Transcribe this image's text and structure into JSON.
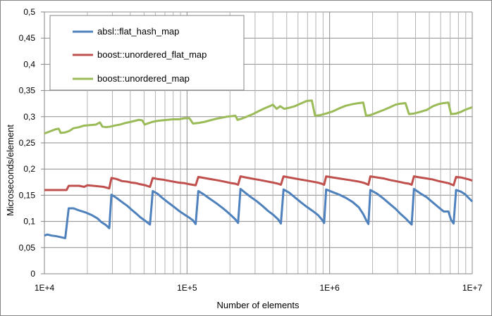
{
  "chart_data": {
    "type": "line",
    "title": "",
    "xlabel": "Number of elements",
    "ylabel": "Microseconds/element",
    "x_scale": "log",
    "xlim": [
      10000,
      10000000
    ],
    "ylim": [
      0,
      0.5
    ],
    "x_tick_labels": [
      "1E+4",
      "1E+5",
      "1E+6",
      "1E+7"
    ],
    "x_tick_values": [
      10000,
      100000,
      1000000,
      10000000
    ],
    "y_tick_labels": [
      "0",
      "0,05",
      "0,1",
      "0,15",
      "0,2",
      "0,25",
      "0,3",
      "0,35",
      "0,4",
      "0,45",
      "0,5"
    ],
    "y_tick_values": [
      0,
      0.05,
      0.1,
      0.15,
      0.2,
      0.25,
      0.3,
      0.35,
      0.4,
      0.45,
      0.5
    ],
    "grid": true,
    "legend_position": "top-left",
    "series": [
      {
        "name": "absl::flat_hash_map",
        "color": "#4F81BD",
        "points": [
          [
            10000,
            0.073
          ],
          [
            10500,
            0.075
          ],
          [
            11200,
            0.073
          ],
          [
            12000,
            0.072
          ],
          [
            13000,
            0.07
          ],
          [
            14000,
            0.068
          ],
          [
            14800,
            0.125
          ],
          [
            16000,
            0.125
          ],
          [
            17500,
            0.121
          ],
          [
            19500,
            0.117
          ],
          [
            21500,
            0.112
          ],
          [
            23500,
            0.106
          ],
          [
            25000,
            0.099
          ],
          [
            27000,
            0.093
          ],
          [
            28500,
            0.087
          ],
          [
            29500,
            0.151
          ],
          [
            32000,
            0.145
          ],
          [
            35000,
            0.137
          ],
          [
            38000,
            0.13
          ],
          [
            41000,
            0.122
          ],
          [
            44000,
            0.115
          ],
          [
            47000,
            0.108
          ],
          [
            51000,
            0.101
          ],
          [
            55000,
            0.094
          ],
          [
            57500,
            0.158
          ],
          [
            62000,
            0.153
          ],
          [
            67000,
            0.145
          ],
          [
            73000,
            0.137
          ],
          [
            80000,
            0.129
          ],
          [
            88000,
            0.12
          ],
          [
            96000,
            0.113
          ],
          [
            104000,
            0.107
          ],
          [
            110000,
            0.102
          ],
          [
            115000,
            0.095
          ],
          [
            120000,
            0.158
          ],
          [
            132000,
            0.151
          ],
          [
            145000,
            0.143
          ],
          [
            160000,
            0.135
          ],
          [
            175000,
            0.127
          ],
          [
            190000,
            0.119
          ],
          [
            205000,
            0.111
          ],
          [
            218000,
            0.104
          ],
          [
            228000,
            0.097
          ],
          [
            237000,
            0.162
          ],
          [
            258000,
            0.154
          ],
          [
            282000,
            0.146
          ],
          [
            310000,
            0.138
          ],
          [
            340000,
            0.129
          ],
          [
            370000,
            0.12
          ],
          [
            405000,
            0.112
          ],
          [
            435000,
            0.104
          ],
          [
            455000,
            0.096
          ],
          [
            475000,
            0.161
          ],
          [
            520000,
            0.155
          ],
          [
            570000,
            0.146
          ],
          [
            625000,
            0.137
          ],
          [
            690000,
            0.128
          ],
          [
            760000,
            0.12
          ],
          [
            830000,
            0.112
          ],
          [
            880000,
            0.104
          ],
          [
            915000,
            0.097
          ],
          [
            945000,
            0.161
          ],
          [
            1050000,
            0.156
          ],
          [
            1170000,
            0.151
          ],
          [
            1300000,
            0.145
          ],
          [
            1450000,
            0.137
          ],
          [
            1600000,
            0.127
          ],
          [
            1720000,
            0.114
          ],
          [
            1800000,
            0.103
          ],
          [
            1870000,
            0.095
          ],
          [
            1930000,
            0.16
          ],
          [
            2150000,
            0.153
          ],
          [
            2400000,
            0.143
          ],
          [
            2650000,
            0.133
          ],
          [
            2900000,
            0.124
          ],
          [
            3150000,
            0.114
          ],
          [
            3400000,
            0.106
          ],
          [
            3600000,
            0.099
          ],
          [
            3760000,
            0.094
          ],
          [
            3900000,
            0.162
          ],
          [
            4300000,
            0.154
          ],
          [
            4800000,
            0.146
          ],
          [
            5300000,
            0.136
          ],
          [
            5800000,
            0.127
          ],
          [
            6300000,
            0.119
          ],
          [
            6800000,
            0.119
          ],
          [
            7100000,
            0.103
          ],
          [
            7400000,
            0.096
          ],
          [
            7700000,
            0.16
          ],
          [
            8300000,
            0.157
          ],
          [
            8900000,
            0.152
          ],
          [
            9500000,
            0.144
          ],
          [
            10000000,
            0.138
          ]
        ]
      },
      {
        "name": "boost::unordered_flat_map",
        "color": "#C0504D",
        "points": [
          [
            10000,
            0.16
          ],
          [
            11500,
            0.16
          ],
          [
            13000,
            0.16
          ],
          [
            14300,
            0.16
          ],
          [
            14800,
            0.168
          ],
          [
            16000,
            0.168
          ],
          [
            17500,
            0.168
          ],
          [
            19000,
            0.166
          ],
          [
            20000,
            0.169
          ],
          [
            22000,
            0.168
          ],
          [
            24000,
            0.167
          ],
          [
            26000,
            0.166
          ],
          [
            28500,
            0.163
          ],
          [
            29500,
            0.183
          ],
          [
            32000,
            0.181
          ],
          [
            35000,
            0.177
          ],
          [
            38000,
            0.176
          ],
          [
            41000,
            0.174
          ],
          [
            44000,
            0.173
          ],
          [
            47000,
            0.171
          ],
          [
            51000,
            0.169
          ],
          [
            55000,
            0.166
          ],
          [
            57500,
            0.183
          ],
          [
            62000,
            0.181
          ],
          [
            67000,
            0.18
          ],
          [
            73000,
            0.178
          ],
          [
            80000,
            0.176
          ],
          [
            88000,
            0.174
          ],
          [
            96000,
            0.173
          ],
          [
            104000,
            0.171
          ],
          [
            115000,
            0.169
          ],
          [
            120000,
            0.185
          ],
          [
            132000,
            0.183
          ],
          [
            145000,
            0.181
          ],
          [
            160000,
            0.179
          ],
          [
            175000,
            0.177
          ],
          [
            190000,
            0.175
          ],
          [
            205000,
            0.173
          ],
          [
            218000,
            0.172
          ],
          [
            228000,
            0.17
          ],
          [
            237000,
            0.186
          ],
          [
            258000,
            0.184
          ],
          [
            282000,
            0.182
          ],
          [
            310000,
            0.18
          ],
          [
            340000,
            0.178
          ],
          [
            370000,
            0.176
          ],
          [
            405000,
            0.174
          ],
          [
            435000,
            0.172
          ],
          [
            455000,
            0.17
          ],
          [
            475000,
            0.186
          ],
          [
            520000,
            0.184
          ],
          [
            570000,
            0.182
          ],
          [
            625000,
            0.18
          ],
          [
            690000,
            0.178
          ],
          [
            760000,
            0.176
          ],
          [
            830000,
            0.174
          ],
          [
            880000,
            0.172
          ],
          [
            915000,
            0.17
          ],
          [
            945000,
            0.186
          ],
          [
            1050000,
            0.184
          ],
          [
            1170000,
            0.182
          ],
          [
            1300000,
            0.18
          ],
          [
            1450000,
            0.178
          ],
          [
            1600000,
            0.176
          ],
          [
            1720000,
            0.174
          ],
          [
            1800000,
            0.172
          ],
          [
            1870000,
            0.17
          ],
          [
            1930000,
            0.186
          ],
          [
            2150000,
            0.184
          ],
          [
            2400000,
            0.182
          ],
          [
            2650000,
            0.179
          ],
          [
            2900000,
            0.177
          ],
          [
            3150000,
            0.175
          ],
          [
            3400000,
            0.173
          ],
          [
            3600000,
            0.172
          ],
          [
            3760000,
            0.17
          ],
          [
            3900000,
            0.186
          ],
          [
            4300000,
            0.184
          ],
          [
            4800000,
            0.182
          ],
          [
            5300000,
            0.18
          ],
          [
            5800000,
            0.177
          ],
          [
            6300000,
            0.175
          ],
          [
            6800000,
            0.173
          ],
          [
            7100000,
            0.171
          ],
          [
            7400000,
            0.169
          ],
          [
            7700000,
            0.185
          ],
          [
            8300000,
            0.184
          ],
          [
            8900000,
            0.182
          ],
          [
            9500000,
            0.18
          ],
          [
            10000000,
            0.178
          ]
        ]
      },
      {
        "name": "boost::unordered_map",
        "color": "#9BBB59",
        "points": [
          [
            10000,
            0.268
          ],
          [
            10500,
            0.27
          ],
          [
            11200,
            0.273
          ],
          [
            12000,
            0.276
          ],
          [
            12600,
            0.277
          ],
          [
            13000,
            0.269
          ],
          [
            14000,
            0.27
          ],
          [
            15000,
            0.273
          ],
          [
            16000,
            0.278
          ],
          [
            17500,
            0.28
          ],
          [
            19000,
            0.283
          ],
          [
            21000,
            0.284
          ],
          [
            23000,
            0.285
          ],
          [
            24500,
            0.289
          ],
          [
            25500,
            0.281
          ],
          [
            27000,
            0.28
          ],
          [
            29000,
            0.281
          ],
          [
            31000,
            0.283
          ],
          [
            34000,
            0.285
          ],
          [
            37000,
            0.288
          ],
          [
            40000,
            0.29
          ],
          [
            43000,
            0.292
          ],
          [
            46000,
            0.294
          ],
          [
            48500,
            0.293
          ],
          [
            50500,
            0.285
          ],
          [
            53000,
            0.287
          ],
          [
            57000,
            0.29
          ],
          [
            62000,
            0.292
          ],
          [
            67000,
            0.293
          ],
          [
            73000,
            0.294
          ],
          [
            80000,
            0.295
          ],
          [
            88000,
            0.295
          ],
          [
            96000,
            0.297
          ],
          [
            104000,
            0.297
          ],
          [
            110000,
            0.287
          ],
          [
            120000,
            0.288
          ],
          [
            132000,
            0.29
          ],
          [
            145000,
            0.293
          ],
          [
            160000,
            0.296
          ],
          [
            175000,
            0.298
          ],
          [
            190000,
            0.3
          ],
          [
            205000,
            0.301
          ],
          [
            218000,
            0.302
          ],
          [
            226000,
            0.294
          ],
          [
            240000,
            0.296
          ],
          [
            262000,
            0.3
          ],
          [
            290000,
            0.305
          ],
          [
            320000,
            0.311
          ],
          [
            350000,
            0.316
          ],
          [
            380000,
            0.32
          ],
          [
            400000,
            0.323
          ],
          [
            425000,
            0.315
          ],
          [
            450000,
            0.32
          ],
          [
            480000,
            0.315
          ],
          [
            520000,
            0.317
          ],
          [
            570000,
            0.32
          ],
          [
            625000,
            0.325
          ],
          [
            690000,
            0.33
          ],
          [
            750000,
            0.331
          ],
          [
            790000,
            0.302
          ],
          [
            860000,
            0.303
          ],
          [
            945000,
            0.306
          ],
          [
            1050000,
            0.31
          ],
          [
            1170000,
            0.316
          ],
          [
            1300000,
            0.321
          ],
          [
            1450000,
            0.324
          ],
          [
            1600000,
            0.326
          ],
          [
            1720000,
            0.327
          ],
          [
            1800000,
            0.302
          ],
          [
            1930000,
            0.303
          ],
          [
            2150000,
            0.308
          ],
          [
            2400000,
            0.313
          ],
          [
            2650000,
            0.318
          ],
          [
            2900000,
            0.323
          ],
          [
            3150000,
            0.325
          ],
          [
            3400000,
            0.326
          ],
          [
            3600000,
            0.305
          ],
          [
            3900000,
            0.306
          ],
          [
            4300000,
            0.309
          ],
          [
            4800000,
            0.313
          ],
          [
            5300000,
            0.32
          ],
          [
            5800000,
            0.324
          ],
          [
            6300000,
            0.326
          ],
          [
            6800000,
            0.327
          ],
          [
            7100000,
            0.305
          ],
          [
            7700000,
            0.306
          ],
          [
            8300000,
            0.309
          ],
          [
            8900000,
            0.313
          ],
          [
            9500000,
            0.316
          ],
          [
            10000000,
            0.318
          ]
        ]
      }
    ]
  }
}
